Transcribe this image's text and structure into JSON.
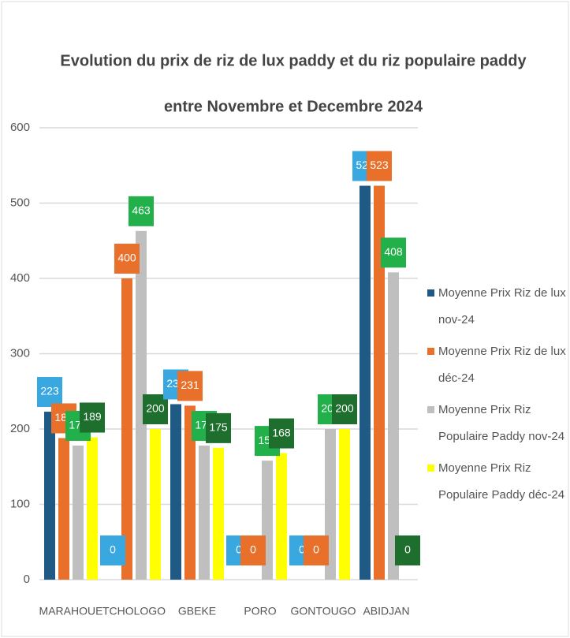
{
  "chart_data": {
    "type": "bar",
    "title": [
      "Evolution du prix de riz de lux paddy et du riz populaire paddy",
      "entre Novembre et Decembre 2024"
    ],
    "categories": [
      "MARAHOUE",
      "TCHOLOGO",
      "GBEKE",
      "PORO",
      "GONTOUGO",
      "ABIDJAN"
    ],
    "series": [
      {
        "name": "Moyenne Prix Riz de lux nov-24",
        "color": "#1f5a85",
        "label_color": "#3aa8e0",
        "values": [
          223,
          0,
          233,
          0,
          0,
          523
        ]
      },
      {
        "name": "Moyenne Prix Riz de lux déc-24",
        "color": "#e8702a",
        "label_color": "#e8702a",
        "values": [
          188,
          400,
          231,
          0,
          0,
          523
        ]
      },
      {
        "name": "Moyenne Prix Riz Populaire Paddy nov-24",
        "color": "#bfbfbf",
        "label_color": "#22b04b",
        "values": [
          178,
          463,
          178,
          158,
          200,
          408
        ]
      },
      {
        "name": "Moyenne Prix Riz Populaire Paddy déc-24",
        "color": "#ffff00",
        "label_color": "#1e6e2e",
        "values": [
          189,
          200,
          175,
          168,
          200,
          0
        ]
      }
    ],
    "ylim": [
      0,
      600
    ],
    "yticks": [
      0,
      100,
      200,
      300,
      400,
      500,
      600
    ],
    "grid": true,
    "legend": "right"
  }
}
